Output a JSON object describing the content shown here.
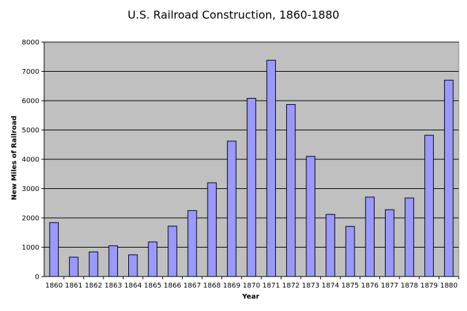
{
  "chart_data": {
    "type": "bar",
    "title": "U.S. Railroad Construction, 1860-1880",
    "xlabel": "Year",
    "ylabel": "New Miles of Railroad",
    "categories": [
      "1860",
      "1861",
      "1862",
      "1863",
      "1864",
      "1865",
      "1866",
      "1867",
      "1868",
      "1869",
      "1870",
      "1871",
      "1872",
      "1873",
      "1874",
      "1875",
      "1876",
      "1877",
      "1878",
      "1879",
      "1880"
    ],
    "values": [
      1840,
      660,
      840,
      1050,
      740,
      1180,
      1720,
      2250,
      3200,
      4620,
      6080,
      7380,
      5870,
      4100,
      2120,
      1710,
      2710,
      2280,
      2680,
      4820,
      6700
    ],
    "ylim": [
      0,
      8000
    ],
    "yticks": [
      0,
      1000,
      2000,
      3000,
      4000,
      5000,
      6000,
      7000,
      8000
    ],
    "grid": true,
    "legend": "none",
    "colors": {
      "bar_fill": "#9999ff",
      "bar_stroke": "#000000",
      "plot_background": "#c0c0c0",
      "gridline": "#000000"
    }
  }
}
